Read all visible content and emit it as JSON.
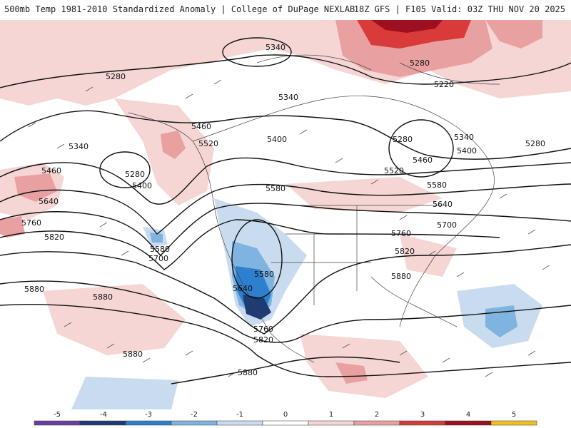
{
  "header": {
    "title": "500mb Temp 1981-2010 Standardized Anomaly | College of DuPage NEXLAB",
    "valid": "18Z GFS | F105 Valid: 03Z THU NOV 20 2025"
  },
  "legend": {
    "ticks": [
      "-5",
      "-4",
      "-3",
      "-2",
      "-1",
      "0",
      "1",
      "2",
      "3",
      "4",
      "5"
    ],
    "colors": [
      "#6b3fa0",
      "#1f3b73",
      "#2f7fcf",
      "#7fb3e0",
      "#c9dcef",
      "#ffffff",
      "#f6d5d5",
      "#e9a0a0",
      "#d93a3a",
      "#9e1020",
      "#f0c020"
    ]
  },
  "contours": {
    "labels": [
      {
        "text": "5340",
        "id": "c5340-a"
      },
      {
        "text": "5280",
        "id": "c5280-a"
      },
      {
        "text": "5280",
        "id": "c5280-b"
      },
      {
        "text": "5220",
        "id": "c5220-a"
      },
      {
        "text": "5340",
        "id": "c5340-b"
      },
      {
        "text": "5460",
        "id": "c5460-a"
      },
      {
        "text": "5340",
        "id": "c5340-c"
      },
      {
        "text": "5520",
        "id": "c5520-a"
      },
      {
        "text": "5400",
        "id": "c5400-a"
      },
      {
        "text": "5280",
        "id": "c5280-c"
      },
      {
        "text": "5340",
        "id": "c5340-d"
      },
      {
        "text": "5400",
        "id": "c5400-b"
      },
      {
        "text": "5280",
        "id": "c5280-d"
      },
      {
        "text": "5460",
        "id": "c5460-b"
      },
      {
        "text": "5460",
        "id": "c5460-c"
      },
      {
        "text": "5280",
        "id": "c5280-e"
      },
      {
        "text": "5520",
        "id": "c5520-b"
      },
      {
        "text": "5400",
        "id": "c5400-c"
      },
      {
        "text": "5580",
        "id": "c5580-a"
      },
      {
        "text": "5580",
        "id": "c5580-b"
      },
      {
        "text": "5640",
        "id": "c5640-a"
      },
      {
        "text": "5640",
        "id": "c5640-b"
      },
      {
        "text": "5700",
        "id": "c5700-a"
      },
      {
        "text": "5760",
        "id": "c5760-a"
      },
      {
        "text": "5760",
        "id": "c5760-b"
      },
      {
        "text": "5820",
        "id": "c5820-a"
      },
      {
        "text": "5820",
        "id": "c5820-b"
      },
      {
        "text": "5580",
        "id": "c5580-c"
      },
      {
        "text": "5700",
        "id": "c5700-b"
      },
      {
        "text": "5580",
        "id": "c5580-d"
      },
      {
        "text": "5640",
        "id": "c5640-c"
      },
      {
        "text": "5880",
        "id": "c5880-a"
      },
      {
        "text": "5880",
        "id": "c5880-b"
      },
      {
        "text": "5880",
        "id": "c5880-c"
      },
      {
        "text": "5760",
        "id": "c5760-c"
      },
      {
        "text": "5820",
        "id": "c5820-c"
      },
      {
        "text": "5880",
        "id": "c5880-d"
      },
      {
        "text": "5880",
        "id": "c5880-e"
      }
    ]
  }
}
